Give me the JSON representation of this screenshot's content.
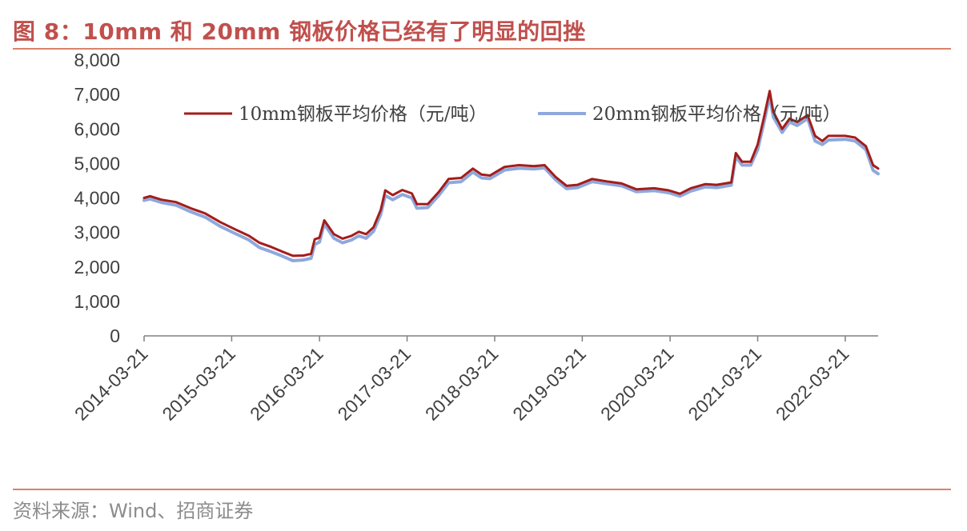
{
  "title": "图 8：10mm 和 20mm 钢板价格已经有了明显的回挫",
  "source": "资料来源：Wind、招商证券",
  "colors": {
    "series_10mm": "#a31d1a",
    "series_20mm": "#8fa8dc",
    "accent": "#c0504d"
  },
  "chart_data": {
    "type": "line",
    "title": "",
    "xlabel": "",
    "ylabel": "",
    "ylim": [
      0,
      8000
    ],
    "yticks": [
      "0",
      "1,000",
      "2,000",
      "3,000",
      "4,000",
      "5,000",
      "6,000",
      "7,000",
      "8,000"
    ],
    "xticks": [
      "2014-03-21",
      "2015-03-21",
      "2016-03-21",
      "2017-03-21",
      "2018-03-21",
      "2019-03-21",
      "2020-03-21",
      "2021-03-21",
      "2022-03-21"
    ],
    "xrange": [
      "2014-03-21",
      "2022-08-05"
    ],
    "grid": false,
    "legend_position": "top",
    "series": [
      {
        "name": "10mm钢板平均价格（元/吨）",
        "points": [
          [
            "2014-03-21",
            4000
          ],
          [
            "2014-04-15",
            4050
          ],
          [
            "2014-06-01",
            3950
          ],
          [
            "2014-08-01",
            3880
          ],
          [
            "2014-10-01",
            3700
          ],
          [
            "2014-12-01",
            3550
          ],
          [
            "2015-02-01",
            3300
          ],
          [
            "2015-04-01",
            3100
          ],
          [
            "2015-06-01",
            2900
          ],
          [
            "2015-07-15",
            2700
          ],
          [
            "2015-09-01",
            2580
          ],
          [
            "2015-10-15",
            2450
          ],
          [
            "2015-12-01",
            2320
          ],
          [
            "2016-01-15",
            2330
          ],
          [
            "2016-02-15",
            2380
          ],
          [
            "2016-03-01",
            2800
          ],
          [
            "2016-03-21",
            2850
          ],
          [
            "2016-04-10",
            3350
          ],
          [
            "2016-04-25",
            3200
          ],
          [
            "2016-05-20",
            2950
          ],
          [
            "2016-06-25",
            2820
          ],
          [
            "2016-08-01",
            2900
          ],
          [
            "2016-09-01",
            3020
          ],
          [
            "2016-10-01",
            2950
          ],
          [
            "2016-11-01",
            3150
          ],
          [
            "2016-12-01",
            3650
          ],
          [
            "2016-12-20",
            4220
          ],
          [
            "2017-01-20",
            4080
          ],
          [
            "2017-03-01",
            4230
          ],
          [
            "2017-04-10",
            4130
          ],
          [
            "2017-05-01",
            3820
          ],
          [
            "2017-06-15",
            3820
          ],
          [
            "2017-08-01",
            4180
          ],
          [
            "2017-09-10",
            4550
          ],
          [
            "2017-11-01",
            4580
          ],
          [
            "2017-12-20",
            4850
          ],
          [
            "2018-01-25",
            4680
          ],
          [
            "2018-03-01",
            4650
          ],
          [
            "2018-05-01",
            4900
          ],
          [
            "2018-07-01",
            4950
          ],
          [
            "2018-09-01",
            4920
          ],
          [
            "2018-10-15",
            4950
          ],
          [
            "2018-12-01",
            4600
          ],
          [
            "2019-01-15",
            4350
          ],
          [
            "2019-03-01",
            4380
          ],
          [
            "2019-05-01",
            4550
          ],
          [
            "2019-07-01",
            4480
          ],
          [
            "2019-09-01",
            4420
          ],
          [
            "2019-11-01",
            4250
          ],
          [
            "2020-01-15",
            4280
          ],
          [
            "2020-03-15",
            4220
          ],
          [
            "2020-05-01",
            4120
          ],
          [
            "2020-06-15",
            4280
          ],
          [
            "2020-08-15",
            4400
          ],
          [
            "2020-10-01",
            4380
          ],
          [
            "2020-12-01",
            4450
          ],
          [
            "2020-12-20",
            5300
          ],
          [
            "2021-01-15",
            5050
          ],
          [
            "2021-02-20",
            5050
          ],
          [
            "2021-03-21",
            5550
          ],
          [
            "2021-04-15",
            6300
          ],
          [
            "2021-05-10",
            7100
          ],
          [
            "2021-05-25",
            6500
          ],
          [
            "2021-07-01",
            6000
          ],
          [
            "2021-08-01",
            6300
          ],
          [
            "2021-09-01",
            6200
          ],
          [
            "2021-10-15",
            6400
          ],
          [
            "2021-11-15",
            5800
          ],
          [
            "2021-12-15",
            5650
          ],
          [
            "2022-01-10",
            5800
          ],
          [
            "2022-03-21",
            5800
          ],
          [
            "2022-05-01",
            5750
          ],
          [
            "2022-06-15",
            5500
          ],
          [
            "2022-07-15",
            4950
          ],
          [
            "2022-08-05",
            4850
          ]
        ]
      },
      {
        "name": "20mm钢板平均价格（元/吨）",
        "points": [
          [
            "2014-03-21",
            3930
          ],
          [
            "2014-04-15",
            3970
          ],
          [
            "2014-06-01",
            3870
          ],
          [
            "2014-08-01",
            3790
          ],
          [
            "2014-10-01",
            3600
          ],
          [
            "2014-12-01",
            3440
          ],
          [
            "2015-02-01",
            3180
          ],
          [
            "2015-04-01",
            2980
          ],
          [
            "2015-06-01",
            2780
          ],
          [
            "2015-07-15",
            2560
          ],
          [
            "2015-09-01",
            2440
          ],
          [
            "2015-10-15",
            2320
          ],
          [
            "2015-12-01",
            2180
          ],
          [
            "2016-01-15",
            2200
          ],
          [
            "2016-02-15",
            2250
          ],
          [
            "2016-03-01",
            2650
          ],
          [
            "2016-03-21",
            2720
          ],
          [
            "2016-04-10",
            3250
          ],
          [
            "2016-04-25",
            3090
          ],
          [
            "2016-05-20",
            2830
          ],
          [
            "2016-06-25",
            2700
          ],
          [
            "2016-08-01",
            2780
          ],
          [
            "2016-09-01",
            2900
          ],
          [
            "2016-10-01",
            2830
          ],
          [
            "2016-11-01",
            3030
          ],
          [
            "2016-12-01",
            3520
          ],
          [
            "2016-12-20",
            4070
          ],
          [
            "2017-01-20",
            3950
          ],
          [
            "2017-03-01",
            4100
          ],
          [
            "2017-04-10",
            4000
          ],
          [
            "2017-05-01",
            3700
          ],
          [
            "2017-06-15",
            3720
          ],
          [
            "2017-08-01",
            4080
          ],
          [
            "2017-09-10",
            4440
          ],
          [
            "2017-11-01",
            4470
          ],
          [
            "2017-12-20",
            4750
          ],
          [
            "2018-01-25",
            4580
          ],
          [
            "2018-03-01",
            4560
          ],
          [
            "2018-05-01",
            4810
          ],
          [
            "2018-07-01",
            4860
          ],
          [
            "2018-09-01",
            4840
          ],
          [
            "2018-10-15",
            4870
          ],
          [
            "2018-12-01",
            4520
          ],
          [
            "2019-01-15",
            4270
          ],
          [
            "2019-03-01",
            4300
          ],
          [
            "2019-05-01",
            4470
          ],
          [
            "2019-07-01",
            4410
          ],
          [
            "2019-09-01",
            4350
          ],
          [
            "2019-11-01",
            4180
          ],
          [
            "2020-01-15",
            4210
          ],
          [
            "2020-03-15",
            4150
          ],
          [
            "2020-05-01",
            4050
          ],
          [
            "2020-06-15",
            4200
          ],
          [
            "2020-08-15",
            4320
          ],
          [
            "2020-10-01",
            4300
          ],
          [
            "2020-12-01",
            4370
          ],
          [
            "2020-12-20",
            5200
          ],
          [
            "2021-01-15",
            4950
          ],
          [
            "2021-02-20",
            4950
          ],
          [
            "2021-03-21",
            5400
          ],
          [
            "2021-04-15",
            6150
          ],
          [
            "2021-05-10",
            6950
          ],
          [
            "2021-05-25",
            6350
          ],
          [
            "2021-07-01",
            5900
          ],
          [
            "2021-08-01",
            6200
          ],
          [
            "2021-09-01",
            6100
          ],
          [
            "2021-10-15",
            6300
          ],
          [
            "2021-11-15",
            5650
          ],
          [
            "2021-12-15",
            5550
          ],
          [
            "2022-01-10",
            5680
          ],
          [
            "2022-03-21",
            5700
          ],
          [
            "2022-05-01",
            5650
          ],
          [
            "2022-06-15",
            5400
          ],
          [
            "2022-07-15",
            4800
          ],
          [
            "2022-08-05",
            4700
          ]
        ]
      }
    ]
  }
}
